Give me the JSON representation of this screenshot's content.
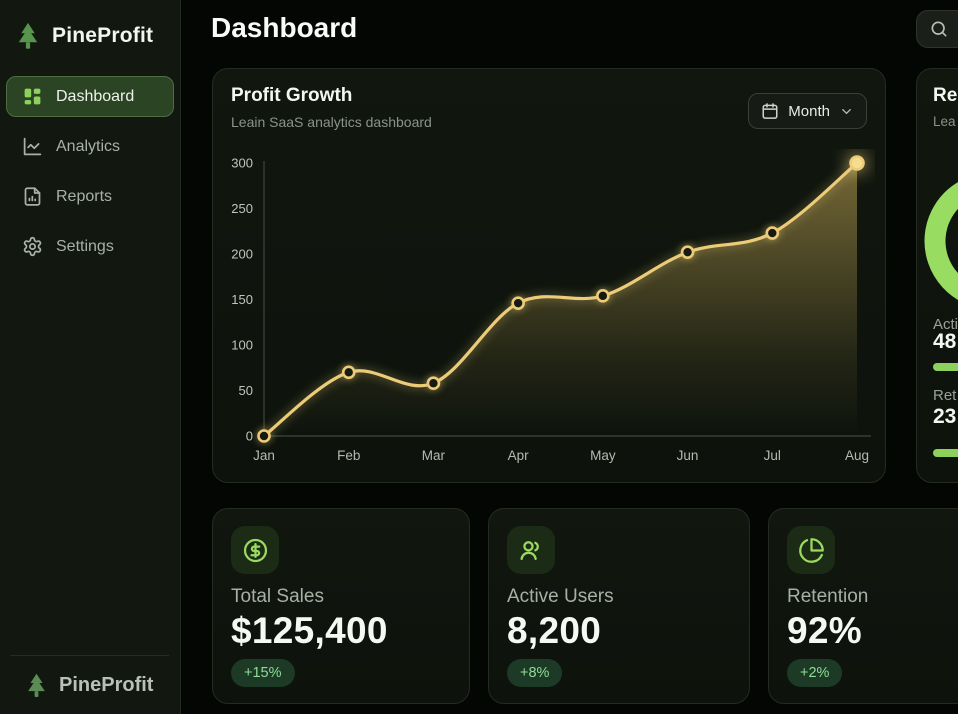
{
  "app_name": "PineProfit",
  "sidebar": {
    "logo": "PineProfit",
    "items": [
      {
        "label": "Dashboard",
        "icon": "dashboard-grid-icon",
        "active": true
      },
      {
        "label": "Analytics",
        "icon": "line-chart-icon",
        "active": false
      },
      {
        "label": "Reports",
        "icon": "report-file-icon",
        "active": false
      },
      {
        "label": "Settings",
        "icon": "gear-icon",
        "active": false
      }
    ],
    "footer_logo": "PineProfit"
  },
  "header": {
    "title": "Dashboard",
    "search_icon": "search-icon"
  },
  "profit_card": {
    "title": "Profit Growth",
    "subtitle": "Leain SaaS analytics dashboard",
    "period_button": {
      "label": "Month",
      "icon": "calendar-icon",
      "chevron": "chevron-down-icon"
    }
  },
  "chart_data": {
    "type": "area",
    "title": "Profit Growth",
    "categories": [
      "Jan",
      "Feb",
      "Mar",
      "Apr",
      "May",
      "Jun",
      "Jul",
      "Aug"
    ],
    "values": [
      0,
      70,
      58,
      146,
      154,
      202,
      223,
      300
    ],
    "xlabel": "",
    "ylabel": "",
    "ylim": [
      0,
      300
    ],
    "yticks": [
      0,
      50,
      100,
      150,
      200,
      250,
      300
    ],
    "grid": false,
    "legend": "none",
    "line_color": "#eccb79",
    "last_point_color": "#f5dd8d",
    "point_fill": "#171a10",
    "area_color": "#d8b95e",
    "axis_color": "#40463d",
    "tick_color": "#c0c5bc"
  },
  "side_card": {
    "title_visible": "Re",
    "subtitle_visible": "Lea",
    "ring_color": "#98dd62",
    "ring_track_color": "#2b302a",
    "stats": [
      {
        "label_visible": "Acti",
        "value_visible": "48"
      },
      {
        "label_visible": "Ret",
        "value_visible": "23"
      }
    ]
  },
  "stat_cards": [
    {
      "icon": "dollar-circle-icon",
      "label": "Total Sales",
      "value": "$125,400",
      "badge": "+15%"
    },
    {
      "icon": "users-icon",
      "label": "Active Users",
      "value": "8,200",
      "badge": "+8%"
    },
    {
      "icon": "pie-chart-icon",
      "label": "Retention",
      "value": "92%",
      "badge": "+2%"
    }
  ],
  "colors": {
    "accent_green": "#8ed05c",
    "gold": "#eccb79",
    "sidebar_bg": "#12170f",
    "card_bg": "#11170f",
    "badge_bg": "#1c3a25",
    "badge_text": "#8fdc96"
  }
}
